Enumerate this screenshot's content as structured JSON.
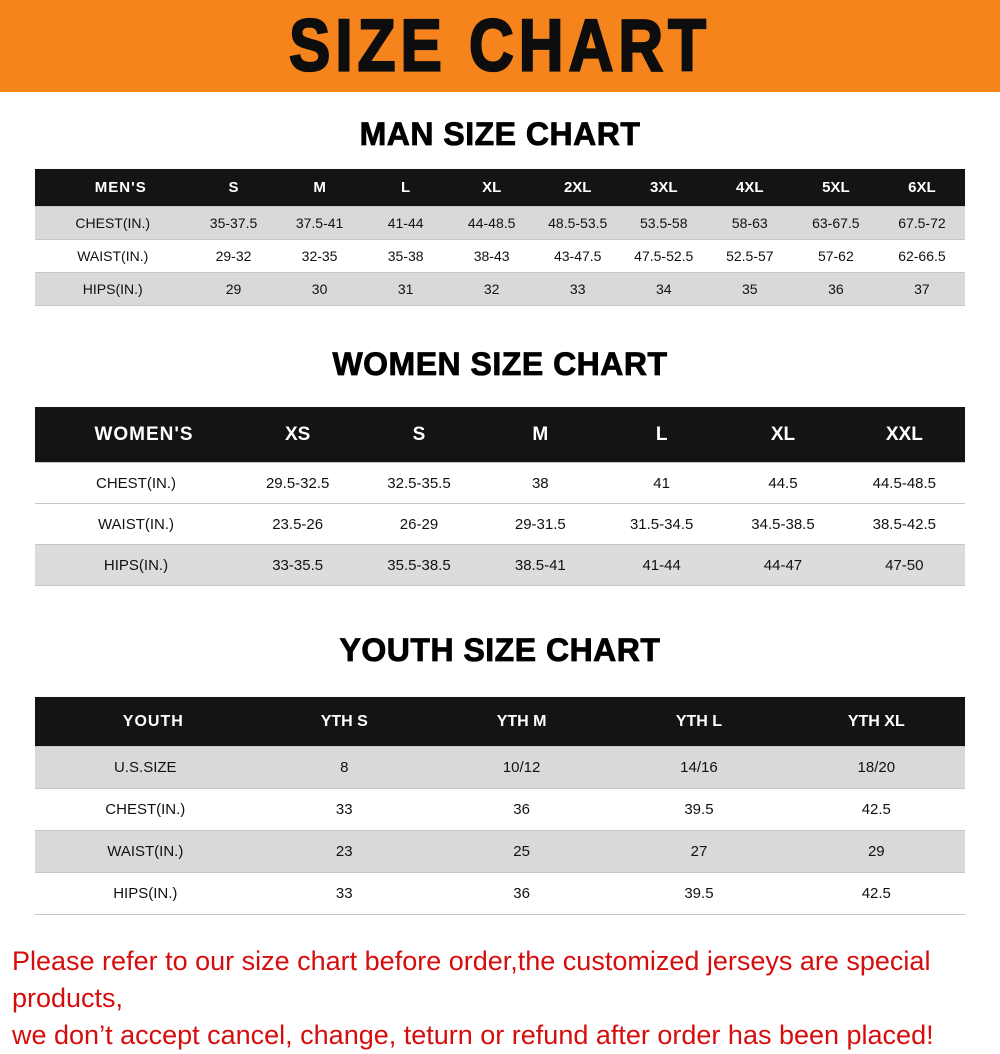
{
  "banner": {
    "title": "SIZE CHART"
  },
  "colors": {
    "banner_bg": "#F5841C",
    "footer_text": "#D60D0D"
  },
  "sections": [
    {
      "heading": "MAN SIZE CHART",
      "table": {
        "label": "MEN'S",
        "columns": [
          "S",
          "M",
          "L",
          "XL",
          "2XL",
          "3XL",
          "4XL",
          "5XL",
          "6XL"
        ],
        "rows": [
          {
            "label": "CHEST(IN.)",
            "values": [
              "35-37.5",
              "37.5-41",
              "41-44",
              "44-48.5",
              "48.5-53.5",
              "53.5-58",
              "58-63",
              "63-67.5",
              "67.5-72"
            ]
          },
          {
            "label": "WAIST(IN.)",
            "values": [
              "29-32",
              "32-35",
              "35-38",
              "38-43",
              "43-47.5",
              "47.5-52.5",
              "52.5-57",
              "57-62",
              "62-66.5"
            ]
          },
          {
            "label": "HIPS(IN.)",
            "values": [
              "29",
              "30",
              "31",
              "32",
              "33",
              "34",
              "35",
              "36",
              "37"
            ]
          }
        ]
      }
    },
    {
      "heading": "WOMEN SIZE CHART",
      "table": {
        "label": "WOMEN'S",
        "columns": [
          "XS",
          "S",
          "M",
          "L",
          "XL",
          "XXL"
        ],
        "rows": [
          {
            "label": "CHEST(IN.)",
            "values": [
              "29.5-32.5",
              "32.5-35.5",
              "38",
              "41",
              "44.5",
              "44.5-48.5"
            ]
          },
          {
            "label": "WAIST(IN.)",
            "values": [
              "23.5-26",
              "26-29",
              "29-31.5",
              "31.5-34.5",
              "34.5-38.5",
              "38.5-42.5"
            ]
          },
          {
            "label": "HIPS(IN.)",
            "values": [
              "33-35.5",
              "35.5-38.5",
              "38.5-41",
              "41-44",
              "44-47",
              "47-50"
            ]
          }
        ]
      }
    },
    {
      "heading": "YOUTH SIZE CHART",
      "table": {
        "label": "YOUTH",
        "columns": [
          "YTH S",
          "YTH M",
          "YTH L",
          "YTH XL"
        ],
        "rows": [
          {
            "label": "U.S.SIZE",
            "values": [
              "8",
              "10/12",
              "14/16",
              "18/20"
            ]
          },
          {
            "label": "CHEST(IN.)",
            "values": [
              "33",
              "36",
              "39.5",
              "42.5"
            ]
          },
          {
            "label": "WAIST(IN.)",
            "values": [
              "23",
              "25",
              "27",
              "29"
            ]
          },
          {
            "label": "HIPS(IN.)",
            "values": [
              "33",
              "36",
              "39.5",
              "42.5"
            ]
          }
        ]
      }
    }
  ],
  "footer": {
    "line1": "Please refer to our size chart before order,the customized jerseys are special products,",
    "line2": "we don’t accept cancel, change, teturn or refund after order has been placed!"
  }
}
